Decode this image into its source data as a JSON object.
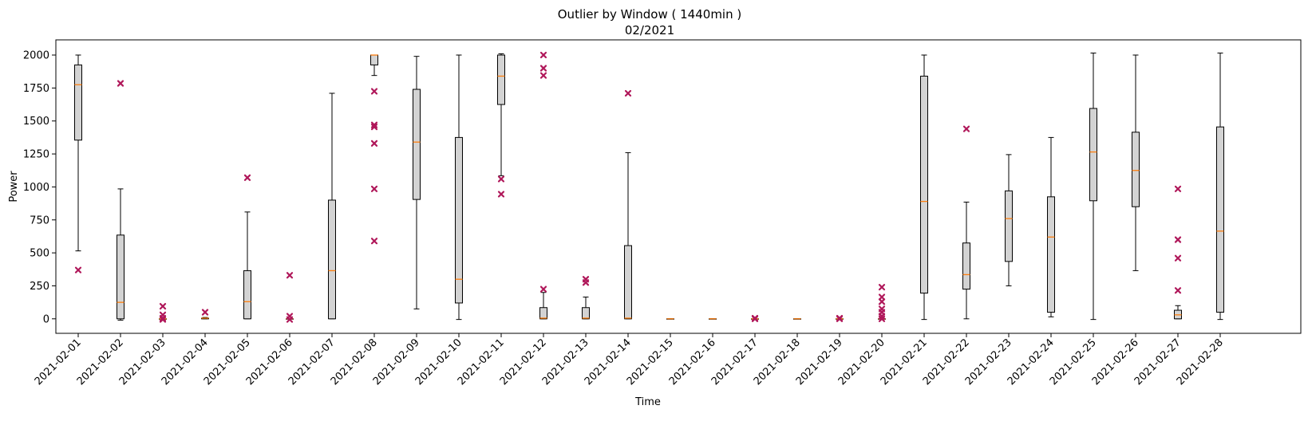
{
  "chart_data": {
    "type": "box",
    "title": "Outlier by Window ( 1440min )",
    "subtitle": "02/2021",
    "xlabel": "Time",
    "ylabel": "Power",
    "ylim": [
      -110,
      2115
    ],
    "yticks": [
      0,
      250,
      500,
      750,
      1000,
      1250,
      1500,
      1750,
      2000
    ],
    "grid": false,
    "colors": {
      "box_fill": "#d3d3d3",
      "box_edge": "#000000",
      "median": "#ff7f0e",
      "outlier": "#b0185a"
    },
    "categories": [
      "2021-02-01",
      "2021-02-02",
      "2021-02-03",
      "2021-02-04",
      "2021-02-05",
      "2021-02-06",
      "2021-02-07",
      "2021-02-08",
      "2021-02-09",
      "2021-02-10",
      "2021-02-11",
      "2021-02-12",
      "2021-02-13",
      "2021-02-14",
      "2021-02-15",
      "2021-02-16",
      "2021-02-17",
      "2021-02-18",
      "2021-02-19",
      "2021-02-20",
      "2021-02-21",
      "2021-02-22",
      "2021-02-23",
      "2021-02-24",
      "2021-02-25",
      "2021-02-26",
      "2021-02-27",
      "2021-02-28"
    ],
    "boxes": [
      {
        "whislo": 515,
        "q1": 1355,
        "med": 1775,
        "q3": 1925,
        "whishi": 2000,
        "fliers": [
          370
        ]
      },
      {
        "whislo": -10,
        "q1": 0,
        "med": 125,
        "q3": 635,
        "whishi": 985,
        "fliers": [
          1785
        ]
      },
      {
        "whislo": 0,
        "q1": 0,
        "med": 0,
        "q3": 0,
        "whishi": 0,
        "fliers": [
          95,
          30,
          5,
          -5
        ]
      },
      {
        "whislo": 0,
        "q1": 0,
        "med": 5,
        "q3": 5,
        "whishi": 10,
        "fliers": [
          50
        ]
      },
      {
        "whislo": 0,
        "q1": 0,
        "med": 130,
        "q3": 365,
        "whishi": 810,
        "fliers": [
          1070
        ]
      },
      {
        "whislo": 0,
        "q1": 0,
        "med": 0,
        "q3": 0,
        "whishi": 0,
        "fliers": [
          330,
          20,
          -5
        ]
      },
      {
        "whislo": 0,
        "q1": 0,
        "med": 365,
        "q3": 900,
        "whishi": 1710,
        "fliers": []
      },
      {
        "whislo": 1845,
        "q1": 1925,
        "med": 2000,
        "q3": 2000,
        "whishi": 2000,
        "fliers": [
          1725,
          1470,
          1455,
          1330,
          985,
          590
        ]
      },
      {
        "whislo": 75,
        "q1": 905,
        "med": 1340,
        "q3": 1740,
        "whishi": 1990,
        "fliers": []
      },
      {
        "whislo": -5,
        "q1": 120,
        "med": 300,
        "q3": 1375,
        "whishi": 2000,
        "fliers": []
      },
      {
        "whislo": 1085,
        "q1": 1625,
        "med": 1840,
        "q3": 2000,
        "whishi": 2010,
        "fliers": [
          1060,
          945
        ]
      },
      {
        "whislo": 0,
        "q1": 0,
        "med": 5,
        "q3": 85,
        "whishi": 200,
        "fliers": [
          2000,
          1900,
          1845,
          225
        ]
      },
      {
        "whislo": 0,
        "q1": 0,
        "med": 5,
        "q3": 85,
        "whishi": 165,
        "fliers": [
          300,
          275
        ]
      },
      {
        "whislo": 0,
        "q1": 0,
        "med": 5,
        "q3": 555,
        "whishi": 1260,
        "fliers": [
          1710
        ]
      },
      {
        "whislo": 0,
        "q1": 0,
        "med": 0,
        "q3": 0,
        "whishi": 0,
        "fliers": []
      },
      {
        "whislo": 0,
        "q1": 0,
        "med": 0,
        "q3": 0,
        "whishi": 0,
        "fliers": []
      },
      {
        "whislo": 0,
        "q1": 0,
        "med": 0,
        "q3": 0,
        "whishi": 0,
        "fliers": [
          5,
          0
        ]
      },
      {
        "whislo": 0,
        "q1": 0,
        "med": 0,
        "q3": 0,
        "whishi": 0,
        "fliers": []
      },
      {
        "whislo": 0,
        "q1": 0,
        "med": 0,
        "q3": 0,
        "whishi": 0,
        "fliers": [
          5,
          0
        ]
      },
      {
        "whislo": 0,
        "q1": 0,
        "med": 0,
        "q3": 0,
        "whishi": 0,
        "fliers": [
          240,
          165,
          130,
          75,
          50,
          20,
          0
        ]
      },
      {
        "whislo": -5,
        "q1": 195,
        "med": 890,
        "q3": 1840,
        "whishi": 2000,
        "fliers": []
      },
      {
        "whislo": 0,
        "q1": 225,
        "med": 335,
        "q3": 575,
        "whishi": 885,
        "fliers": [
          1440
        ]
      },
      {
        "whislo": 250,
        "q1": 435,
        "med": 760,
        "q3": 970,
        "whishi": 1245,
        "fliers": []
      },
      {
        "whislo": 15,
        "q1": 50,
        "med": 620,
        "q3": 925,
        "whishi": 1375,
        "fliers": []
      },
      {
        "whislo": -5,
        "q1": 895,
        "med": 1265,
        "q3": 1595,
        "whishi": 2015,
        "fliers": []
      },
      {
        "whislo": 365,
        "q1": 850,
        "med": 1125,
        "q3": 1415,
        "whishi": 2000,
        "fliers": []
      },
      {
        "whislo": 0,
        "q1": 0,
        "med": 30,
        "q3": 65,
        "whishi": 100,
        "fliers": [
          985,
          600,
          460,
          215
        ]
      },
      {
        "whislo": -5,
        "q1": 50,
        "med": 665,
        "q3": 1455,
        "whishi": 2015,
        "fliers": []
      }
    ]
  }
}
